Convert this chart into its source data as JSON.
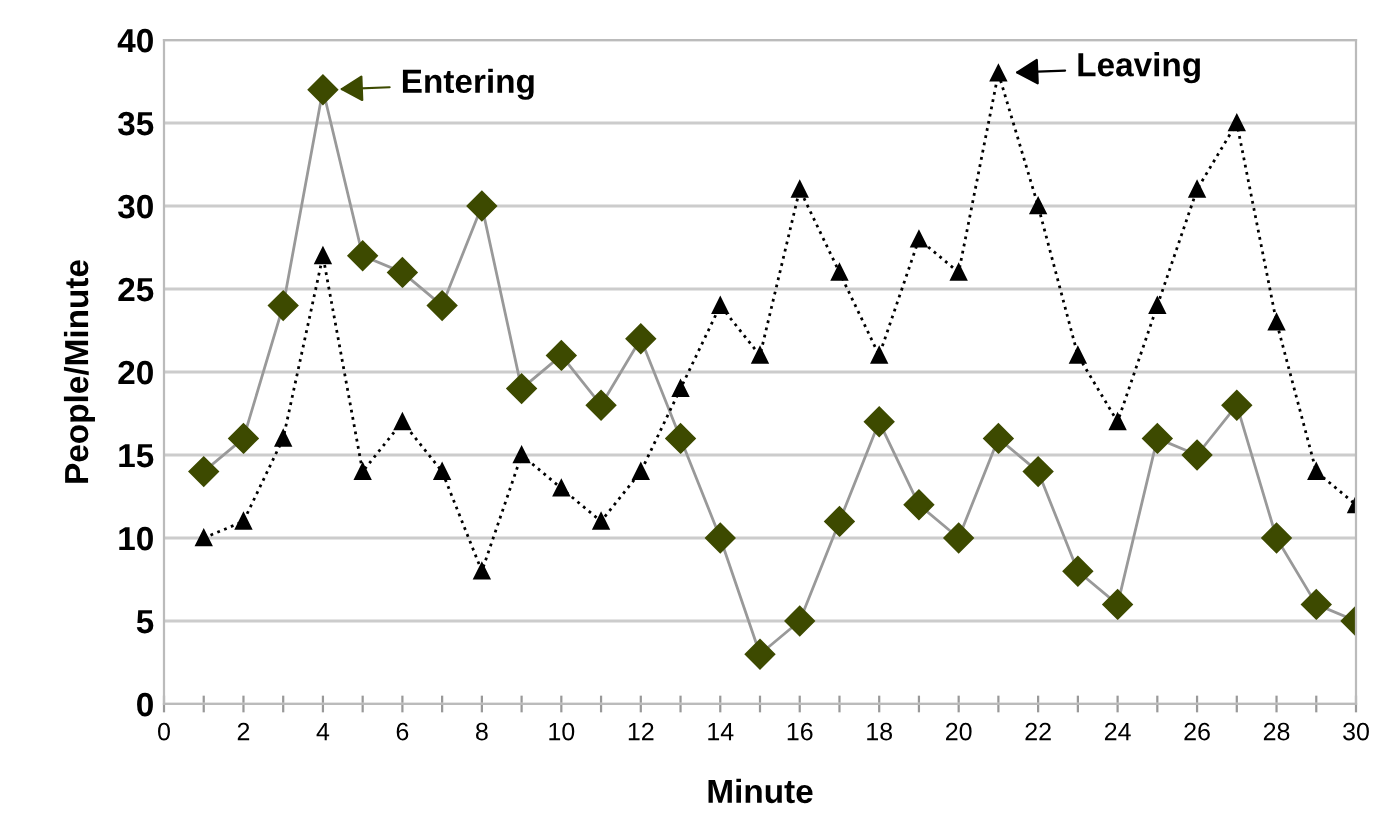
{
  "chart_data": {
    "type": "line",
    "xlabel": "Minute",
    "ylabel": "People/Minute",
    "x": [
      1,
      2,
      3,
      4,
      5,
      6,
      7,
      8,
      9,
      10,
      11,
      12,
      13,
      14,
      15,
      16,
      17,
      18,
      19,
      20,
      21,
      22,
      23,
      24,
      25,
      26,
      27,
      28,
      29,
      30
    ],
    "series": [
      {
        "name": "Entering",
        "color": "#3d4a00",
        "marker": "diamond",
        "line_style": "solid",
        "values": [
          14,
          16,
          24,
          37,
          27,
          26,
          24,
          30,
          19,
          21,
          18,
          22,
          16,
          10,
          3,
          5,
          11,
          17,
          12,
          10,
          16,
          14,
          8,
          6,
          16,
          15,
          18,
          10,
          6,
          5
        ]
      },
      {
        "name": "Leaving",
        "color": "#000000",
        "marker": "triangle",
        "line_style": "dotted",
        "values": [
          10,
          11,
          16,
          27,
          14,
          17,
          14,
          8,
          15,
          13,
          11,
          14,
          19,
          24,
          21,
          31,
          26,
          21,
          28,
          26,
          38,
          30,
          21,
          17,
          24,
          31,
          35,
          23,
          14,
          12
        ]
      }
    ],
    "xlim": [
      0,
      30
    ],
    "ylim": [
      0,
      40
    ],
    "xticks": [
      0,
      {
        "value": 1,
        "label": null
      },
      2,
      {
        "value": 3,
        "label": null
      },
      4,
      {
        "value": 5,
        "label": null
      },
      6,
      {
        "value": 7,
        "label": null
      },
      8,
      {
        "value": 9,
        "label": null
      },
      10,
      {
        "value": 11,
        "label": null
      },
      12,
      {
        "value": 13,
        "label": null
      },
      14,
      {
        "value": 15,
        "label": null
      },
      16,
      {
        "value": 17,
        "label": null
      },
      18,
      {
        "value": 19,
        "label": null
      },
      20,
      {
        "value": 21,
        "label": null
      },
      22,
      {
        "value": 23,
        "label": null
      },
      24,
      {
        "value": 25,
        "label": null
      },
      26,
      {
        "value": 27,
        "label": null
      },
      28,
      {
        "value": 29,
        "label": null
      },
      30
    ],
    "yticks": [
      0,
      5,
      10,
      15,
      20,
      25,
      30,
      35,
      40
    ],
    "grid": "y",
    "legend": "top"
  }
}
